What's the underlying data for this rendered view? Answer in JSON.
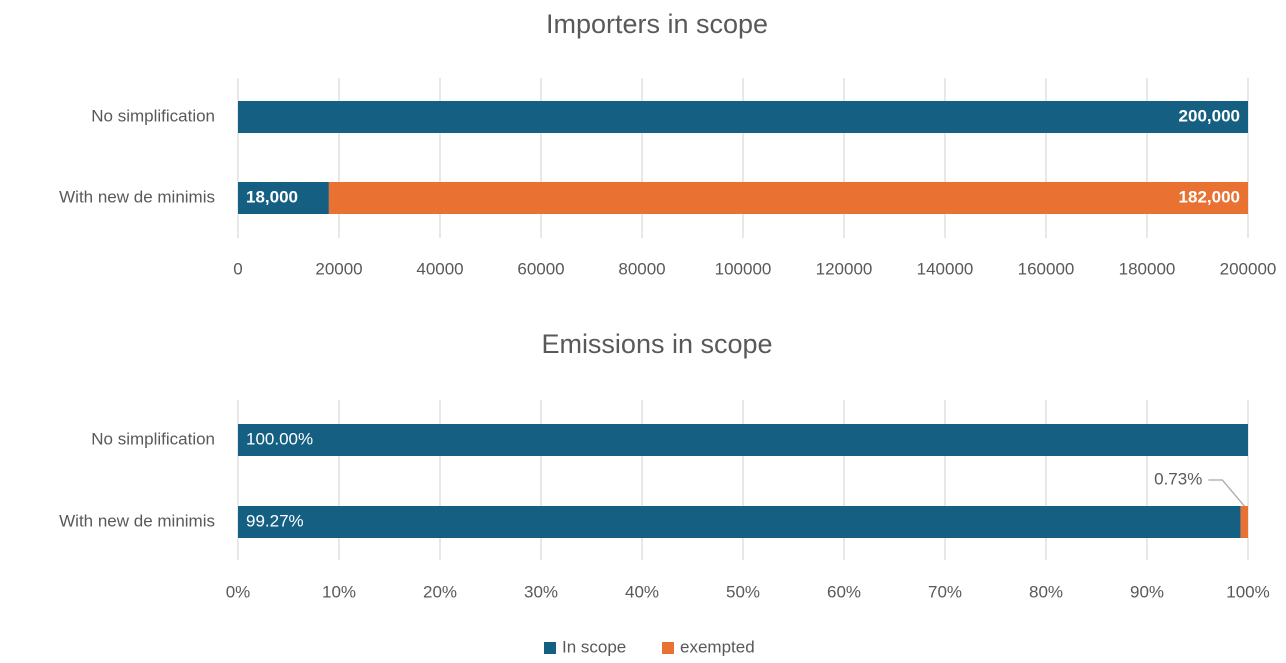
{
  "chart_data": [
    {
      "type": "bar",
      "orientation": "horizontal",
      "stacked": true,
      "title": "Importers in scope",
      "categories": [
        "No simplification",
        "With new de minimis"
      ],
      "series": [
        {
          "name": "In scope",
          "values": [
            200000,
            18000
          ],
          "data_labels": [
            "200,000",
            "18,000"
          ]
        },
        {
          "name": "exempted",
          "values": [
            0,
            182000
          ],
          "data_labels": [
            "",
            "182,000"
          ]
        }
      ],
      "xlim": [
        0,
        200000
      ],
      "xticks": [
        "0",
        "20000",
        "40000",
        "60000",
        "80000",
        "100000",
        "120000",
        "140000",
        "160000",
        "180000",
        "200000"
      ],
      "grid": true
    },
    {
      "type": "bar",
      "orientation": "horizontal",
      "stacked": true,
      "percent": true,
      "title": "Emissions in scope",
      "categories": [
        "No simplification",
        "With new de minimis"
      ],
      "series": [
        {
          "name": "In scope",
          "values": [
            100.0,
            99.27
          ],
          "data_labels": [
            "100.00%",
            "99.27%"
          ]
        },
        {
          "name": "exempted",
          "values": [
            0,
            0.73
          ],
          "data_labels": [
            "",
            "0.73%"
          ]
        }
      ],
      "xlim": [
        0,
        100
      ],
      "xticks": [
        "0%",
        "10%",
        "20%",
        "30%",
        "40%",
        "50%",
        "60%",
        "70%",
        "80%",
        "90%",
        "100%"
      ],
      "grid": true
    }
  ],
  "legend": {
    "position": "bottom",
    "items": [
      {
        "label": "In scope",
        "color": "#156082"
      },
      {
        "label": "exempted",
        "color": "#e97132"
      }
    ]
  },
  "colors": {
    "in_scope": "#156082",
    "exempted": "#e97132",
    "grid": "#d9d9d9",
    "text": "#595959"
  }
}
